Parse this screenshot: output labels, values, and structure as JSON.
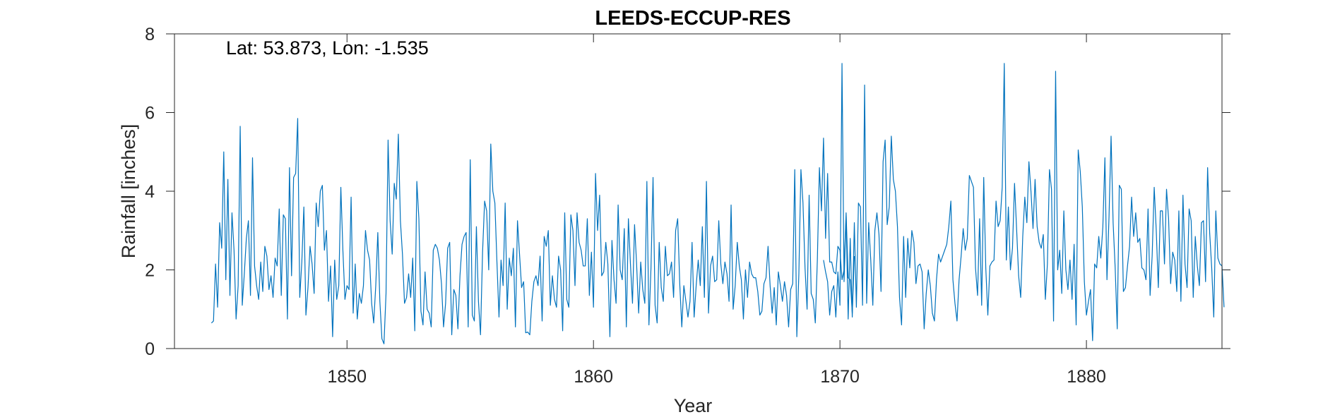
{
  "chart_data": {
    "type": "line",
    "title": "LEEDS-ECCUP-RES",
    "xlabel": "Year",
    "ylabel": "Rainfall [inches]",
    "xlim": [
      1843.0,
      1885.5
    ],
    "ylim": [
      0,
      8
    ],
    "xticks": [
      1850,
      1860,
      1870,
      1880
    ],
    "yticks": [
      0,
      2,
      4,
      6,
      8
    ],
    "grid": false,
    "box": true,
    "annotation": "Lat: 53.873, Lon: -1.535",
    "series": [
      {
        "color": "#0072BD",
        "segments": [
          {
            "start": "1844-07",
            "values": [
              0.65,
              0.7,
              2.15,
              1.05,
              3.2,
              2.55,
              5.0,
              1.75,
              4.3,
              1.35,
              3.45,
              2.5,
              0.75,
              1.6,
              5.65,
              1.1,
              1.9,
              2.8,
              3.25,
              1.35,
              4.85,
              2.1,
              1.6,
              1.25,
              2.2,
              1.45,
              2.6,
              2.35,
              1.5,
              1.85,
              1.3,
              2.3,
              2.1,
              3.55,
              1.35,
              3.4,
              3.3,
              0.75,
              4.6,
              1.85,
              4.35,
              4.45,
              5.85,
              1.3,
              2.2,
              3.6,
              0.85,
              1.55,
              2.6,
              2.15,
              1.4,
              3.7,
              3.1,
              4.0,
              4.15,
              2.5,
              3.0,
              1.2,
              2.1,
              0.3,
              2.25,
              1.25,
              1.6,
              4.1,
              2.5,
              1.25,
              1.6,
              1.5,
              3.85,
              0.9,
              2.15,
              0.75,
              1.4,
              1.15,
              1.6,
              3.0,
              2.5,
              2.25,
              1.15,
              0.65,
              1.6,
              2.95,
              1.2,
              0.25,
              0.12,
              1.4,
              5.3,
              3.25,
              2.4,
              4.2,
              3.8,
              5.45,
              3.25,
              2.4,
              1.15,
              1.3,
              1.9,
              1.3,
              2.3,
              0.45,
              4.25,
              3.3,
              0.95,
              0.6,
              1.95,
              1.0,
              0.9,
              0.55,
              2.5,
              2.65,
              2.55,
              2.25,
              1.65,
              0.55,
              1.15,
              2.55,
              2.7,
              0.35,
              1.5,
              1.35,
              0.5,
              1.85,
              2.65,
              2.85,
              2.95,
              0.55,
              4.8,
              0.85,
              0.7,
              3.1,
              1.2,
              0.35,
              2.45,
              3.75,
              3.5,
              2.0,
              5.2,
              4.0,
              3.7,
              2.2,
              0.8,
              2.25,
              1.6,
              3.7,
              1.0,
              2.3,
              1.85,
              2.55,
              0.55,
              3.25,
              2.4,
              1.55,
              1.7,
              0.4,
              0.42,
              0.35,
              1.2,
              1.7,
              1.85,
              1.6,
              2.35,
              0.7,
              2.85,
              2.6,
              3.0,
              1.1,
              1.85,
              1.25,
              1.05,
              2.35,
              2.0,
              0.45,
              3.45,
              1.25,
              1.05,
              3.4,
              3.0,
              1.6,
              3.45,
              2.7,
              2.5,
              2.1,
              2.1,
              3.3,
              1.35,
              2.45,
              1.05,
              4.45,
              3.0,
              3.9,
              1.85,
              1.95,
              2.7,
              2.15,
              0.3,
              2.75,
              1.75,
              1.15,
              3.65,
              2.0,
              1.75,
              3.05,
              0.55,
              3.3,
              2.15,
              1.15,
              3.15,
              2.15,
              0.9,
              2.2,
              1.5,
              1.15,
              4.25,
              0.6,
              2.05,
              4.35,
              1.1,
              0.65,
              2.7,
              1.55,
              1.2,
              2.6,
              1.85,
              1.9,
              2.2,
              1.3,
              3.0,
              3.3,
              1.65,
              0.55,
              1.6,
              1.2,
              0.8,
              1.2,
              2.7,
              0.8,
              1.6,
              2.25,
              1.6,
              3.1,
              1.3,
              4.25,
              0.9,
              2.1,
              2.35,
              1.7,
              1.75,
              3.25,
              2.15,
              1.65,
              2.2,
              1.9,
              1.2,
              3.65,
              1.0,
              1.6,
              2.7,
              2.1,
              1.75,
              0.75,
              2.0,
              1.3,
              2.2,
              1.9,
              1.8,
              1.8,
              1.45,
              0.85,
              0.95,
              1.65,
              1.8,
              2.6,
              1.6,
              0.9,
              1.55,
              0.6,
              1.95,
              1.6,
              1.2,
              1.7,
              1.35,
              0.55,
              1.5,
              1.65,
              4.55,
              0.3,
              1.9,
              4.55,
              3.7,
              2.05,
              1.0,
              3.9,
              1.4,
              1.25,
              0.65,
              2.25,
              4.6,
              3.5,
              5.35,
              2.8,
              4.45,
              2.2,
              2.2,
              1.95,
              1.9,
              2.6,
              2.5,
              1.75,
              2.0,
              3.45,
              1.8,
              1.75,
              0.9,
              2.35
            ]
          },
          {
            "start": "1869-05",
            "values": [
              2.25,
              1.95,
              1.7,
              0.85,
              1.45,
              1.6,
              0.8,
              1.95,
              1.1,
              7.25,
              1.7,
              3.35,
              0.75,
              2.8,
              0.8,
              3.2,
              1.05,
              3.7,
              3.6,
              1.1,
              6.7,
              1.15,
              3.2,
              2.25,
              1.1,
              3.0,
              3.45,
              2.9,
              1.45,
              4.75,
              5.3,
              3.15,
              3.6,
              5.4,
              4.3,
              4.0,
              3.1,
              1.3,
              0.6,
              2.85,
              1.3,
              2.8,
              2.05,
              3.0,
              2.7,
              1.65,
              2.1,
              2.15,
              1.95,
              0.5,
              1.4,
              2.0,
              1.6,
              0.9,
              0.7,
              1.75,
              2.4,
              2.2,
              2.35,
              2.5,
              2.65,
              3.1,
              3.75,
              1.75,
              1.15,
              0.7,
              1.75,
              2.35,
              3.05,
              2.5,
              2.8,
              4.4,
              4.25,
              4.1,
              2.05,
              1.35,
              3.3,
              1.1,
              4.35,
              2.05,
              0.85,
              2.1,
              2.2,
              2.25,
              3.75,
              3.1,
              3.25,
              4.1,
              7.25,
              2.25,
              3.6,
              2.0,
              2.55,
              4.2,
              3.05,
              1.85,
              1.3,
              2.85,
              3.85,
              3.2,
              4.75,
              4.0,
              3.05,
              4.3,
              3.1,
              2.7,
              2.55,
              2.9,
              1.25,
              2.15,
              4.55,
              4.05,
              0.7,
              7.05,
              2.0,
              2.5,
              1.4,
              3.5,
              2.0,
              1.5,
              2.25,
              1.25,
              2.65,
              0.6,
              5.05,
              4.5,
              3.6,
              1.7,
              0.85,
              1.2,
              1.5,
              0.2,
              2.15,
              2.05,
              2.85,
              2.3,
              3.1,
              4.85,
              1.75,
              3.35,
              5.4,
              3.2,
              2.05,
              0.5,
              4.15,
              4.05,
              1.45,
              1.55,
              2.1,
              2.6,
              3.85,
              2.85,
              3.45,
              2.7,
              2.8,
              2.05,
              2.0,
              1.75,
              3.55,
              1.35,
              2.35,
              4.1,
              3.0,
              1.55,
              3.5,
              3.5,
              2.15,
              4.05,
              3.3,
              1.65,
              2.45,
              2.25,
              1.45,
              3.5,
              1.2,
              3.9,
              2.15,
              1.55,
              3.55,
              3.25,
              1.3,
              2.85,
              2.1,
              1.6,
              3.2,
              3.25,
              1.7,
              4.6,
              2.95,
              2.05,
              0.8,
              3.5,
              2.3,
              2.15,
              2.1,
              1.05
            ]
          }
        ]
      }
    ]
  }
}
